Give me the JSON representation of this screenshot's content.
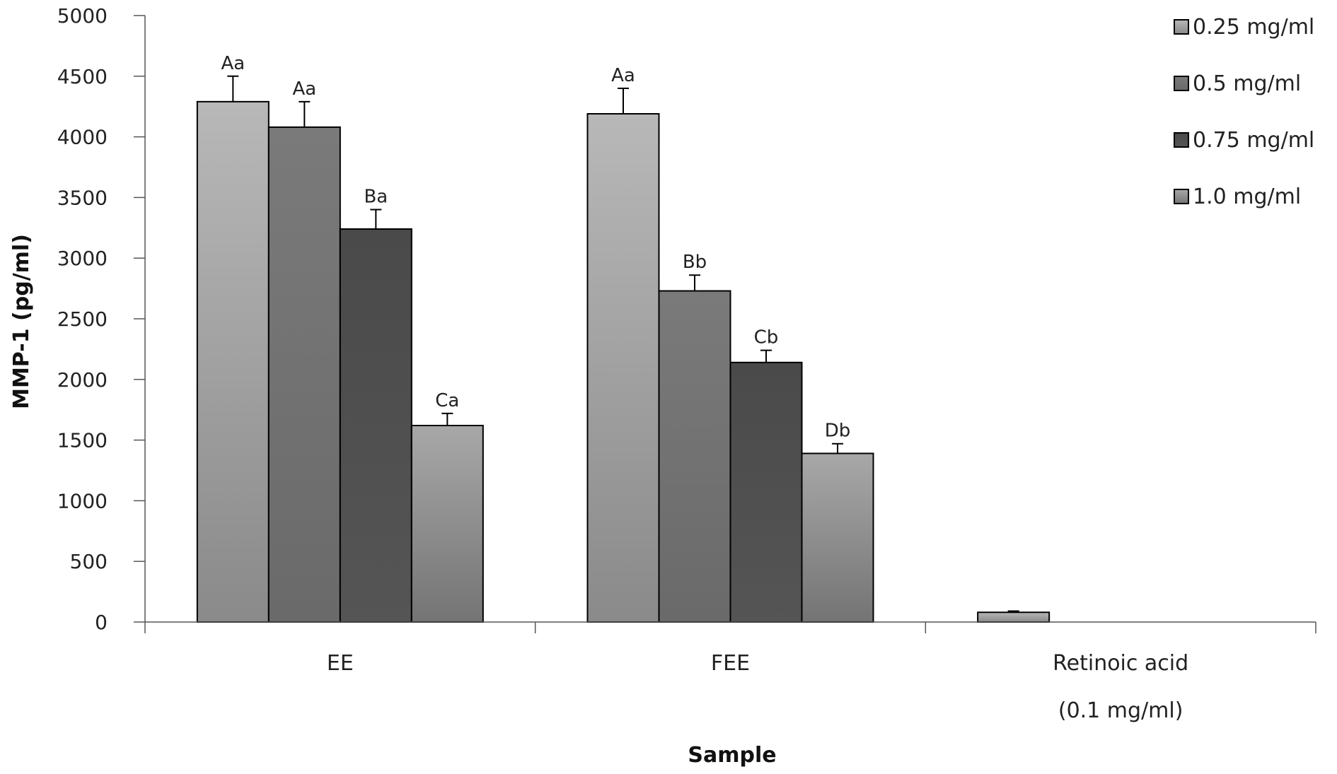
{
  "chart_data": {
    "type": "bar",
    "title": "",
    "xlabel": "Sample",
    "ylabel": "MMP-1 (pg/ml)",
    "ylim": [
      0,
      5000
    ],
    "yticks": [
      "0",
      "500",
      "1000",
      "1500",
      "2000",
      "2500",
      "3000",
      "3500",
      "4000",
      "4500",
      "5000"
    ],
    "categories": [
      {
        "line1": "EE",
        "line2": ""
      },
      {
        "line1": "FEE",
        "line2": ""
      },
      {
        "line1": "Retinoic acid",
        "line2": "(0.1 mg/ml)"
      }
    ],
    "series": [
      {
        "name": "0.25 mg/ml",
        "colors": [
          "#b8b8b8",
          "#8a8a8a"
        ],
        "values": [
          4290,
          4190,
          80
        ],
        "errors": [
          210,
          210,
          10
        ],
        "labels": [
          "Aa",
          "Aa",
          ""
        ]
      },
      {
        "name": "0.5 mg/ml",
        "colors": [
          "#7a7a7a",
          "#6a6a6a"
        ],
        "values": [
          4080,
          2730,
          null
        ],
        "errors": [
          210,
          130,
          null
        ],
        "labels": [
          "Aa",
          "Bb",
          ""
        ]
      },
      {
        "name": "0.75 mg/ml",
        "colors": [
          "#4a4a4a",
          "#555555"
        ],
        "values": [
          3240,
          2140,
          null
        ],
        "errors": [
          160,
          100,
          null
        ],
        "labels": [
          "Ba",
          "Cb",
          ""
        ]
      },
      {
        "name": "1.0 mg/ml",
        "colors": [
          "#a8a8a8",
          "#747474"
        ],
        "values": [
          1620,
          1390,
          null
        ],
        "errors": [
          100,
          80,
          null
        ],
        "labels": [
          "Ca",
          "Db",
          ""
        ]
      }
    ],
    "legend_position": "top-right",
    "grid": false
  }
}
